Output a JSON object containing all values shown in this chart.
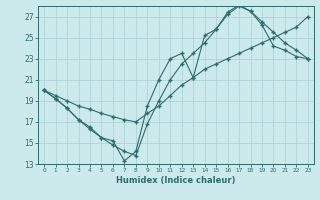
{
  "xlabel": "Humidex (Indice chaleur)",
  "bg_color": "#cce9ec",
  "line_color": "#2a6e6e",
  "grid_color": "#aacfd4",
  "xlim": [
    -0.5,
    23.5
  ],
  "ylim": [
    13,
    28
  ],
  "xticks": [
    0,
    1,
    2,
    3,
    4,
    5,
    6,
    7,
    8,
    9,
    10,
    11,
    12,
    13,
    14,
    15,
    16,
    17,
    18,
    19,
    20,
    21,
    22,
    23
  ],
  "yticks": [
    13,
    15,
    17,
    19,
    21,
    23,
    25,
    27
  ],
  "line1_x": [
    0,
    1,
    2,
    3,
    4,
    5,
    6,
    7,
    8,
    9,
    10,
    11,
    12,
    13,
    14,
    15,
    16,
    17,
    18,
    19,
    20,
    21,
    22,
    23
  ],
  "line1_y": [
    20.0,
    19.2,
    18.3,
    17.2,
    16.3,
    15.5,
    15.2,
    13.3,
    14.2,
    18.5,
    21.0,
    23.0,
    23.5,
    21.2,
    25.2,
    25.8,
    27.4,
    28.1,
    27.5,
    26.2,
    24.2,
    23.8,
    23.2,
    23.0
  ],
  "line2_x": [
    0,
    1,
    2,
    3,
    4,
    5,
    6,
    7,
    8,
    9,
    10,
    11,
    12,
    13,
    14,
    15,
    16,
    17,
    18,
    19,
    20,
    21,
    22,
    23
  ],
  "line2_y": [
    20.0,
    19.5,
    19.0,
    18.5,
    18.2,
    17.8,
    17.5,
    17.2,
    17.0,
    17.8,
    18.5,
    19.5,
    20.5,
    21.2,
    22.0,
    22.5,
    23.0,
    23.5,
    24.0,
    24.5,
    25.0,
    25.5,
    26.0,
    27.0
  ],
  "line3_x": [
    0,
    1,
    2,
    3,
    4,
    5,
    6,
    7,
    8,
    9,
    10,
    11,
    12,
    13,
    14,
    15,
    16,
    17,
    18,
    19,
    20,
    21,
    22,
    23
  ],
  "line3_y": [
    20.0,
    19.2,
    18.3,
    17.2,
    16.5,
    15.5,
    14.8,
    14.2,
    13.8,
    16.8,
    19.0,
    21.0,
    22.5,
    23.5,
    24.5,
    25.8,
    27.2,
    28.0,
    27.5,
    26.5,
    25.5,
    24.5,
    23.8,
    23.0
  ]
}
